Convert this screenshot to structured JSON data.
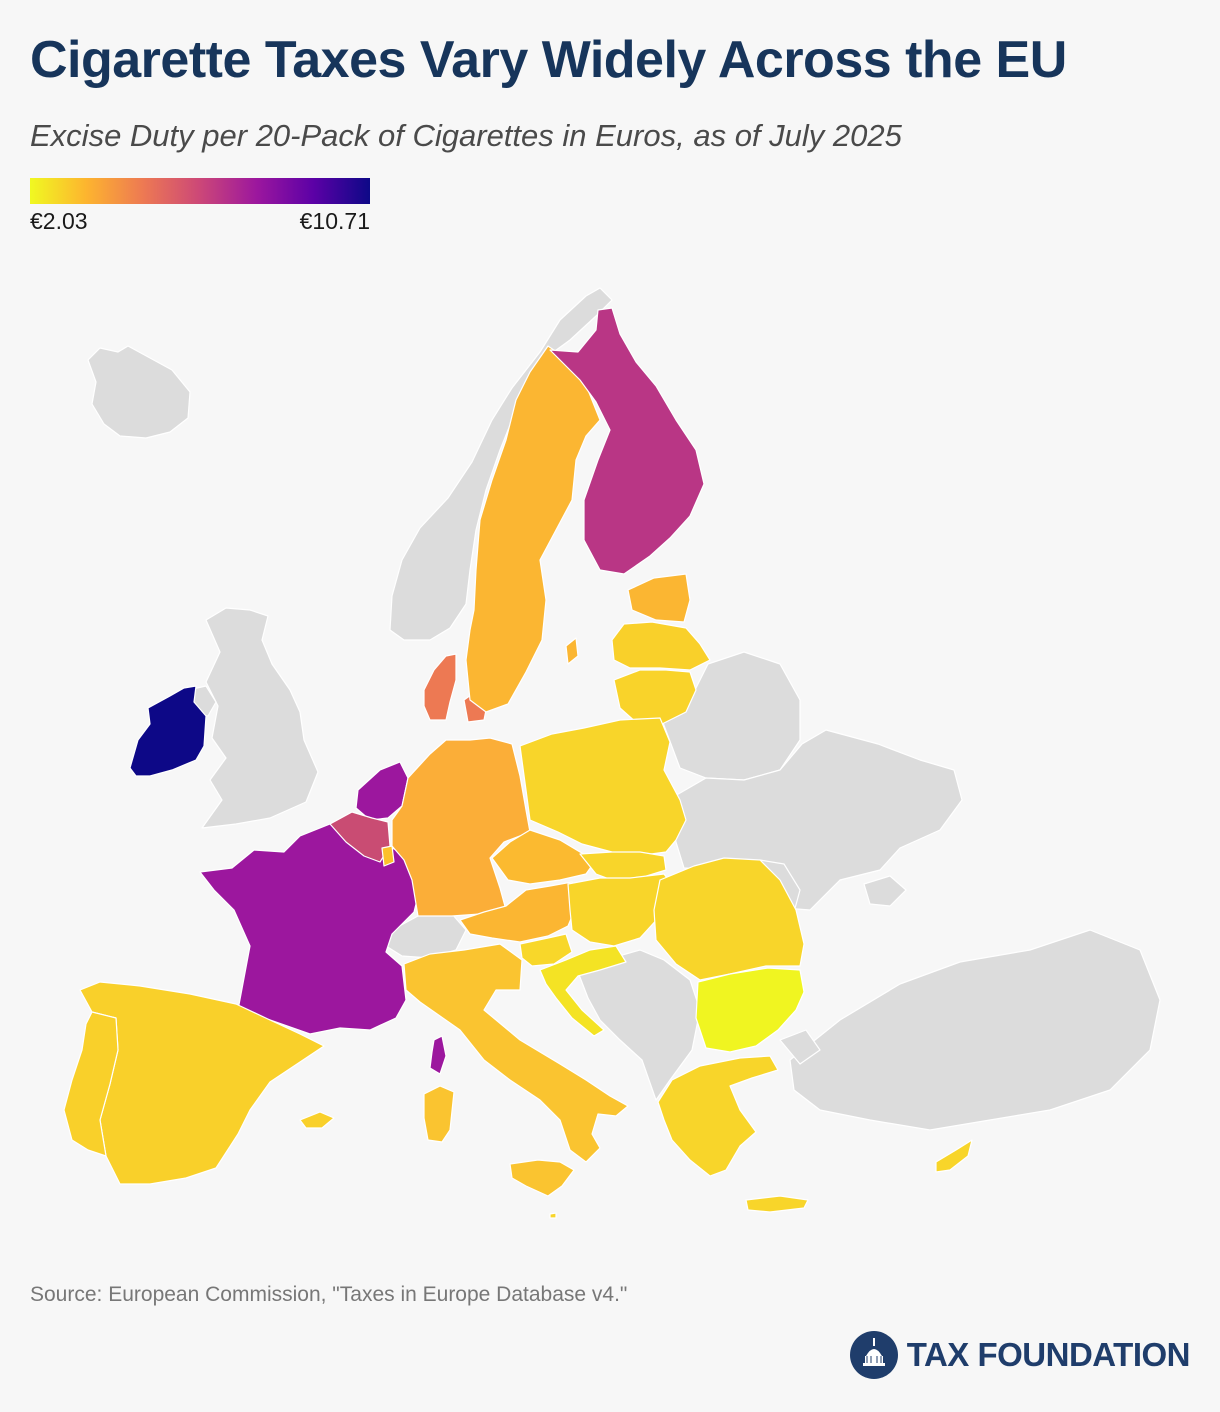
{
  "title": "Cigarette Taxes Vary Widely Across the EU",
  "subtitle": "Excise Duty per 20-Pack of Cigarettes in Euros, as of July 2025",
  "legend": {
    "min_label": "€2.03",
    "max_label": "€10.71",
    "min_value": 2.03,
    "max_value": 10.71,
    "colors": [
      "#f0f921",
      "#fdb42f",
      "#ed7953",
      "#cc4778",
      "#9c179e",
      "#5c01a6",
      "#0d0887"
    ]
  },
  "map": {
    "no_data_color": "#dcdcdc",
    "country_fills": {
      "ireland": "#0d0887",
      "france": "#9c179e",
      "netherlands": "#9c179e",
      "corsica": "#9c179e",
      "finland": "#b93685",
      "belgium": "#c94c73",
      "luxembourg": "#fcc12a",
      "denmark": "#ed7953",
      "sweden": "#fbb632",
      "germany": "#fbae38",
      "austria": "#fbb632",
      "czechia": "#fbba30",
      "estonia": "#fbb632",
      "latvia": "#f9d02a",
      "lithuania": "#f9d32a",
      "poland": "#f8d52a",
      "slovakia": "#f8d52a",
      "hungary": "#f8d52a",
      "romania": "#f8d52a",
      "italy": "#fac430",
      "spain": "#f9d02a",
      "portugal": "#f9d02a",
      "slovenia": "#f8d72a",
      "croatia": "#f4e324",
      "greece": "#f8d52a",
      "cyprus": "#f8d52a",
      "malta": "#f8d52a",
      "bulgaria": "#f0f521"
    }
  },
  "source": "Source: European Commission, \"Taxes in Europe Database v4.\"",
  "logo": {
    "text": "TAX FOUNDATION"
  }
}
